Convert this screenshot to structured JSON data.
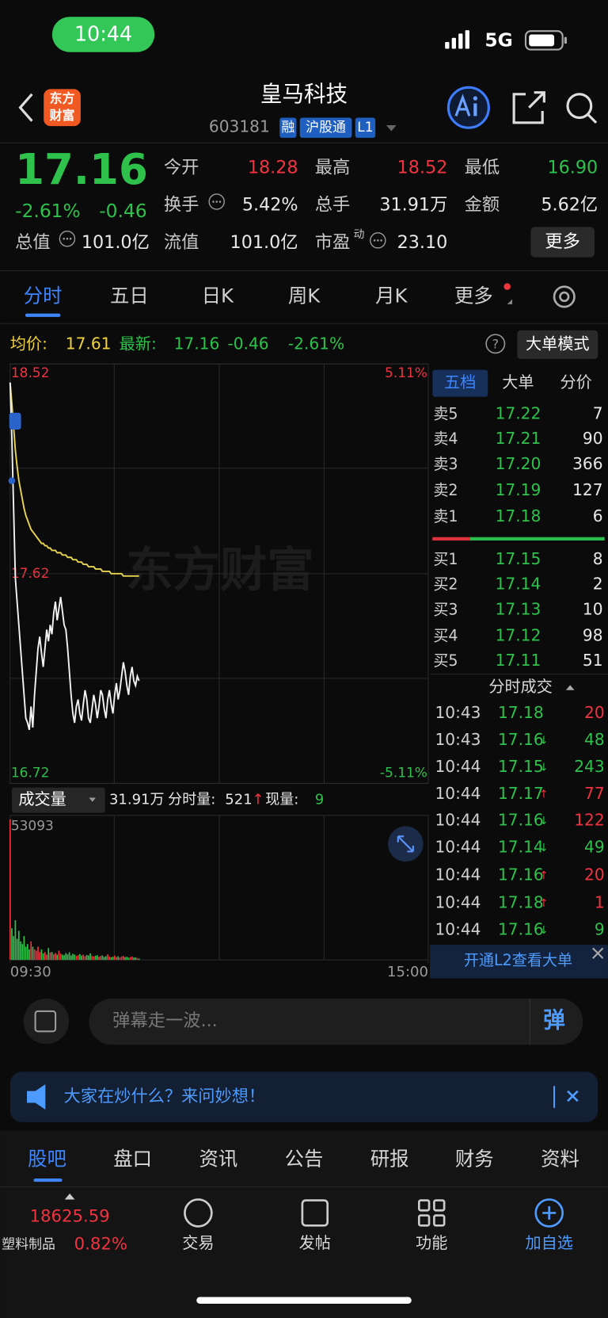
{
  "status_bar": {
    "time": "10:44",
    "network": "5G"
  },
  "header": {
    "logo": [
      "东方",
      "财富"
    ],
    "name": "皇马科技",
    "code": "603181",
    "tags": [
      "融",
      "沪股通",
      "L1"
    ]
  },
  "quote": {
    "price": "17.16",
    "change_pct": "-2.61%",
    "change": "-0.46",
    "stats": [
      [
        {
          "label": "今开",
          "value": "18.28",
          "color": "red"
        },
        {
          "label": "最高",
          "value": "18.52",
          "color": "red"
        },
        {
          "label": "最低",
          "value": "16.90",
          "color": "green"
        }
      ],
      [
        {
          "label": "换手",
          "value": "5.42%"
        },
        {
          "label": "总手",
          "value": "31.91万"
        },
        {
          "label": "金额",
          "value": "5.62亿"
        }
      ],
      [
        {
          "label": "总值",
          "value": "101.0亿"
        },
        {
          "label": "流值",
          "value": "101.0亿"
        },
        {
          "label": "市盈",
          "sup": "动",
          "value": "23.10"
        }
      ]
    ],
    "more": "更多"
  },
  "tabs": [
    "分时",
    "五日",
    "日K",
    "周K",
    "月K",
    "更多"
  ],
  "info_bar": {
    "avg_label": "均价:",
    "avg": "17.61",
    "latest_label": "最新:",
    "latest": "17.16",
    "change": "-0.46",
    "change_pct": "-2.61%",
    "help": "?",
    "mode": "大单模式"
  },
  "chart_data": {
    "type": "line",
    "watermark": "东方财富",
    "xlim": [
      0,
      240
    ],
    "xticks": [
      {
        "value": 0,
        "label": "09:30"
      },
      {
        "value": 240,
        "label": "15:00"
      }
    ],
    "ylim": [
      16.72,
      18.52
    ],
    "yticks": [
      18.52,
      17.62,
      16.72
    ],
    "y2lim": [
      -5.11,
      5.11
    ],
    "y2ticks": [
      {
        "value": 5.11,
        "label": "5.11%"
      },
      {
        "value": -5.11,
        "label": "-5.11%"
      }
    ],
    "price": [
      18.44,
      18.2,
      17.9,
      17.6,
      17.5,
      17.4,
      17.3,
      17.2,
      17.1,
      17.0,
      16.98,
      16.95,
      17.05,
      16.96,
      17.1,
      17.2,
      17.3,
      17.35,
      17.28,
      17.22,
      17.3,
      17.38,
      17.33,
      17.4,
      17.36,
      17.45,
      17.5,
      17.42,
      17.47,
      17.52,
      17.46,
      17.4,
      17.38,
      17.3,
      17.2,
      17.1,
      17.02,
      16.98,
      17.05,
      17.08,
      17.02,
      16.99,
      17.06,
      17.12,
      17.08,
      17.0,
      16.98,
      17.04,
      17.1,
      17.06,
      17.0,
      17.05,
      17.12,
      17.1,
      17.04,
      17.0,
      17.08,
      17.12,
      17.06,
      17.02,
      17.1,
      17.15,
      17.08,
      17.12,
      17.18,
      17.24,
      17.2,
      17.14,
      17.1,
      17.18,
      17.22,
      17.16,
      17.14,
      17.18,
      17.16
    ],
    "avg": [
      18.44,
      18.35,
      18.25,
      18.15,
      18.08,
      18.02,
      17.98,
      17.94,
      17.9,
      17.87,
      17.85,
      17.83,
      17.81,
      17.8,
      17.79,
      17.78,
      17.77,
      17.76,
      17.75,
      17.75,
      17.74,
      17.74,
      17.73,
      17.73,
      17.72,
      17.72,
      17.72,
      17.71,
      17.71,
      17.71,
      17.7,
      17.7,
      17.7,
      17.69,
      17.69,
      17.69,
      17.68,
      17.68,
      17.68,
      17.67,
      17.67,
      17.67,
      17.66,
      17.66,
      17.66,
      17.65,
      17.65,
      17.65,
      17.65,
      17.64,
      17.64,
      17.64,
      17.64,
      17.63,
      17.63,
      17.63,
      17.63,
      17.63,
      17.62,
      17.62,
      17.62,
      17.62,
      17.62,
      17.62,
      17.62,
      17.61,
      17.61,
      17.61,
      17.61,
      17.61,
      17.61,
      17.61,
      17.61,
      17.61,
      17.61
    ],
    "volume": {
      "label": "成交量",
      "total": "31.91万",
      "minute_label": "分时量:",
      "minute": "521",
      "arrow": "↑",
      "current_label": "现量:",
      "current": "9",
      "ylim": [
        0,
        53093
      ],
      "yticks": [
        53093
      ],
      "values": [
        53093,
        12000,
        9000,
        15000,
        8000,
        11000,
        7000,
        6000,
        9000,
        5000,
        6000,
        4000,
        7000,
        5000,
        4000,
        3500,
        5000,
        3000,
        4000,
        2500,
        3000,
        2000,
        4500,
        2800,
        3000,
        2200,
        2600,
        2000,
        3500,
        2400,
        2000,
        1800,
        2600,
        2100,
        2900,
        1700,
        2300,
        2000,
        1500,
        1800,
        2200,
        1600,
        2000,
        1400,
        1900,
        1700,
        2500,
        1500,
        1300,
        1600,
        1800,
        1200,
        1500,
        1700,
        1100,
        1400,
        2100,
        1300,
        1000,
        1200,
        1600,
        1100,
        1400,
        900,
        1300,
        1500,
        1000,
        1200,
        800,
        1100,
        1300,
        900,
        1000,
        700,
        521
      ]
    }
  },
  "order_book": {
    "tabs": [
      "五档",
      "大单",
      "分价"
    ],
    "asks": [
      {
        "label": "卖5",
        "price": "17.22",
        "volume": "7"
      },
      {
        "label": "卖4",
        "price": "17.21",
        "volume": "90"
      },
      {
        "label": "卖3",
        "price": "17.20",
        "volume": "366"
      },
      {
        "label": "卖2",
        "price": "17.19",
        "volume": "127"
      },
      {
        "label": "卖1",
        "price": "17.18",
        "volume": "6"
      }
    ],
    "bids": [
      {
        "label": "买1",
        "price": "17.15",
        "volume": "8"
      },
      {
        "label": "买2",
        "price": "17.14",
        "volume": "2"
      },
      {
        "label": "买3",
        "price": "17.13",
        "volume": "10"
      },
      {
        "label": "买4",
        "price": "17.12",
        "volume": "98"
      },
      {
        "label": "买5",
        "price": "17.11",
        "volume": "51"
      }
    ]
  },
  "trades": {
    "title": "分时成交",
    "rows": [
      {
        "time": "10:43",
        "price": "17.18",
        "volume": "20",
        "color": "red"
      },
      {
        "time": "10:43",
        "price": "17.16",
        "arrow": "↓",
        "volume": "48",
        "color": "green"
      },
      {
        "time": "10:44",
        "price": "17.15",
        "arrow": "↓",
        "volume": "243",
        "color": "green"
      },
      {
        "time": "10:44",
        "price": "17.17",
        "arrow": "↑",
        "volume": "77",
        "color": "red"
      },
      {
        "time": "10:44",
        "price": "17.16",
        "arrow": "↓",
        "volume": "122",
        "color": "red"
      },
      {
        "time": "10:44",
        "price": "17.14",
        "arrow": "↓",
        "volume": "49",
        "color": "green"
      },
      {
        "time": "10:44",
        "price": "17.16",
        "arrow": "↑",
        "volume": "20",
        "color": "red"
      },
      {
        "time": "10:44",
        "price": "17.18",
        "arrow": "↑",
        "volume": "1",
        "color": "red"
      },
      {
        "time": "10:44",
        "price": "17.16",
        "arrow": "↓",
        "volume": "9",
        "color": "green"
      }
    ],
    "promo": "开通L2查看大单"
  },
  "comment": {
    "placeholder": "弹幕走一波...",
    "button": "弹"
  },
  "banner": {
    "text": "大家在炒什么？来问妙想！"
  },
  "sub_tabs": [
    "股吧",
    "盘口",
    "资讯",
    "公告",
    "研报",
    "财务",
    "资料"
  ],
  "bottom_nav": {
    "index_value": "18625.59",
    "sector": "塑料制品",
    "sector_change": "0.82%",
    "items": [
      "交易",
      "发帖",
      "功能",
      "加自选"
    ]
  }
}
